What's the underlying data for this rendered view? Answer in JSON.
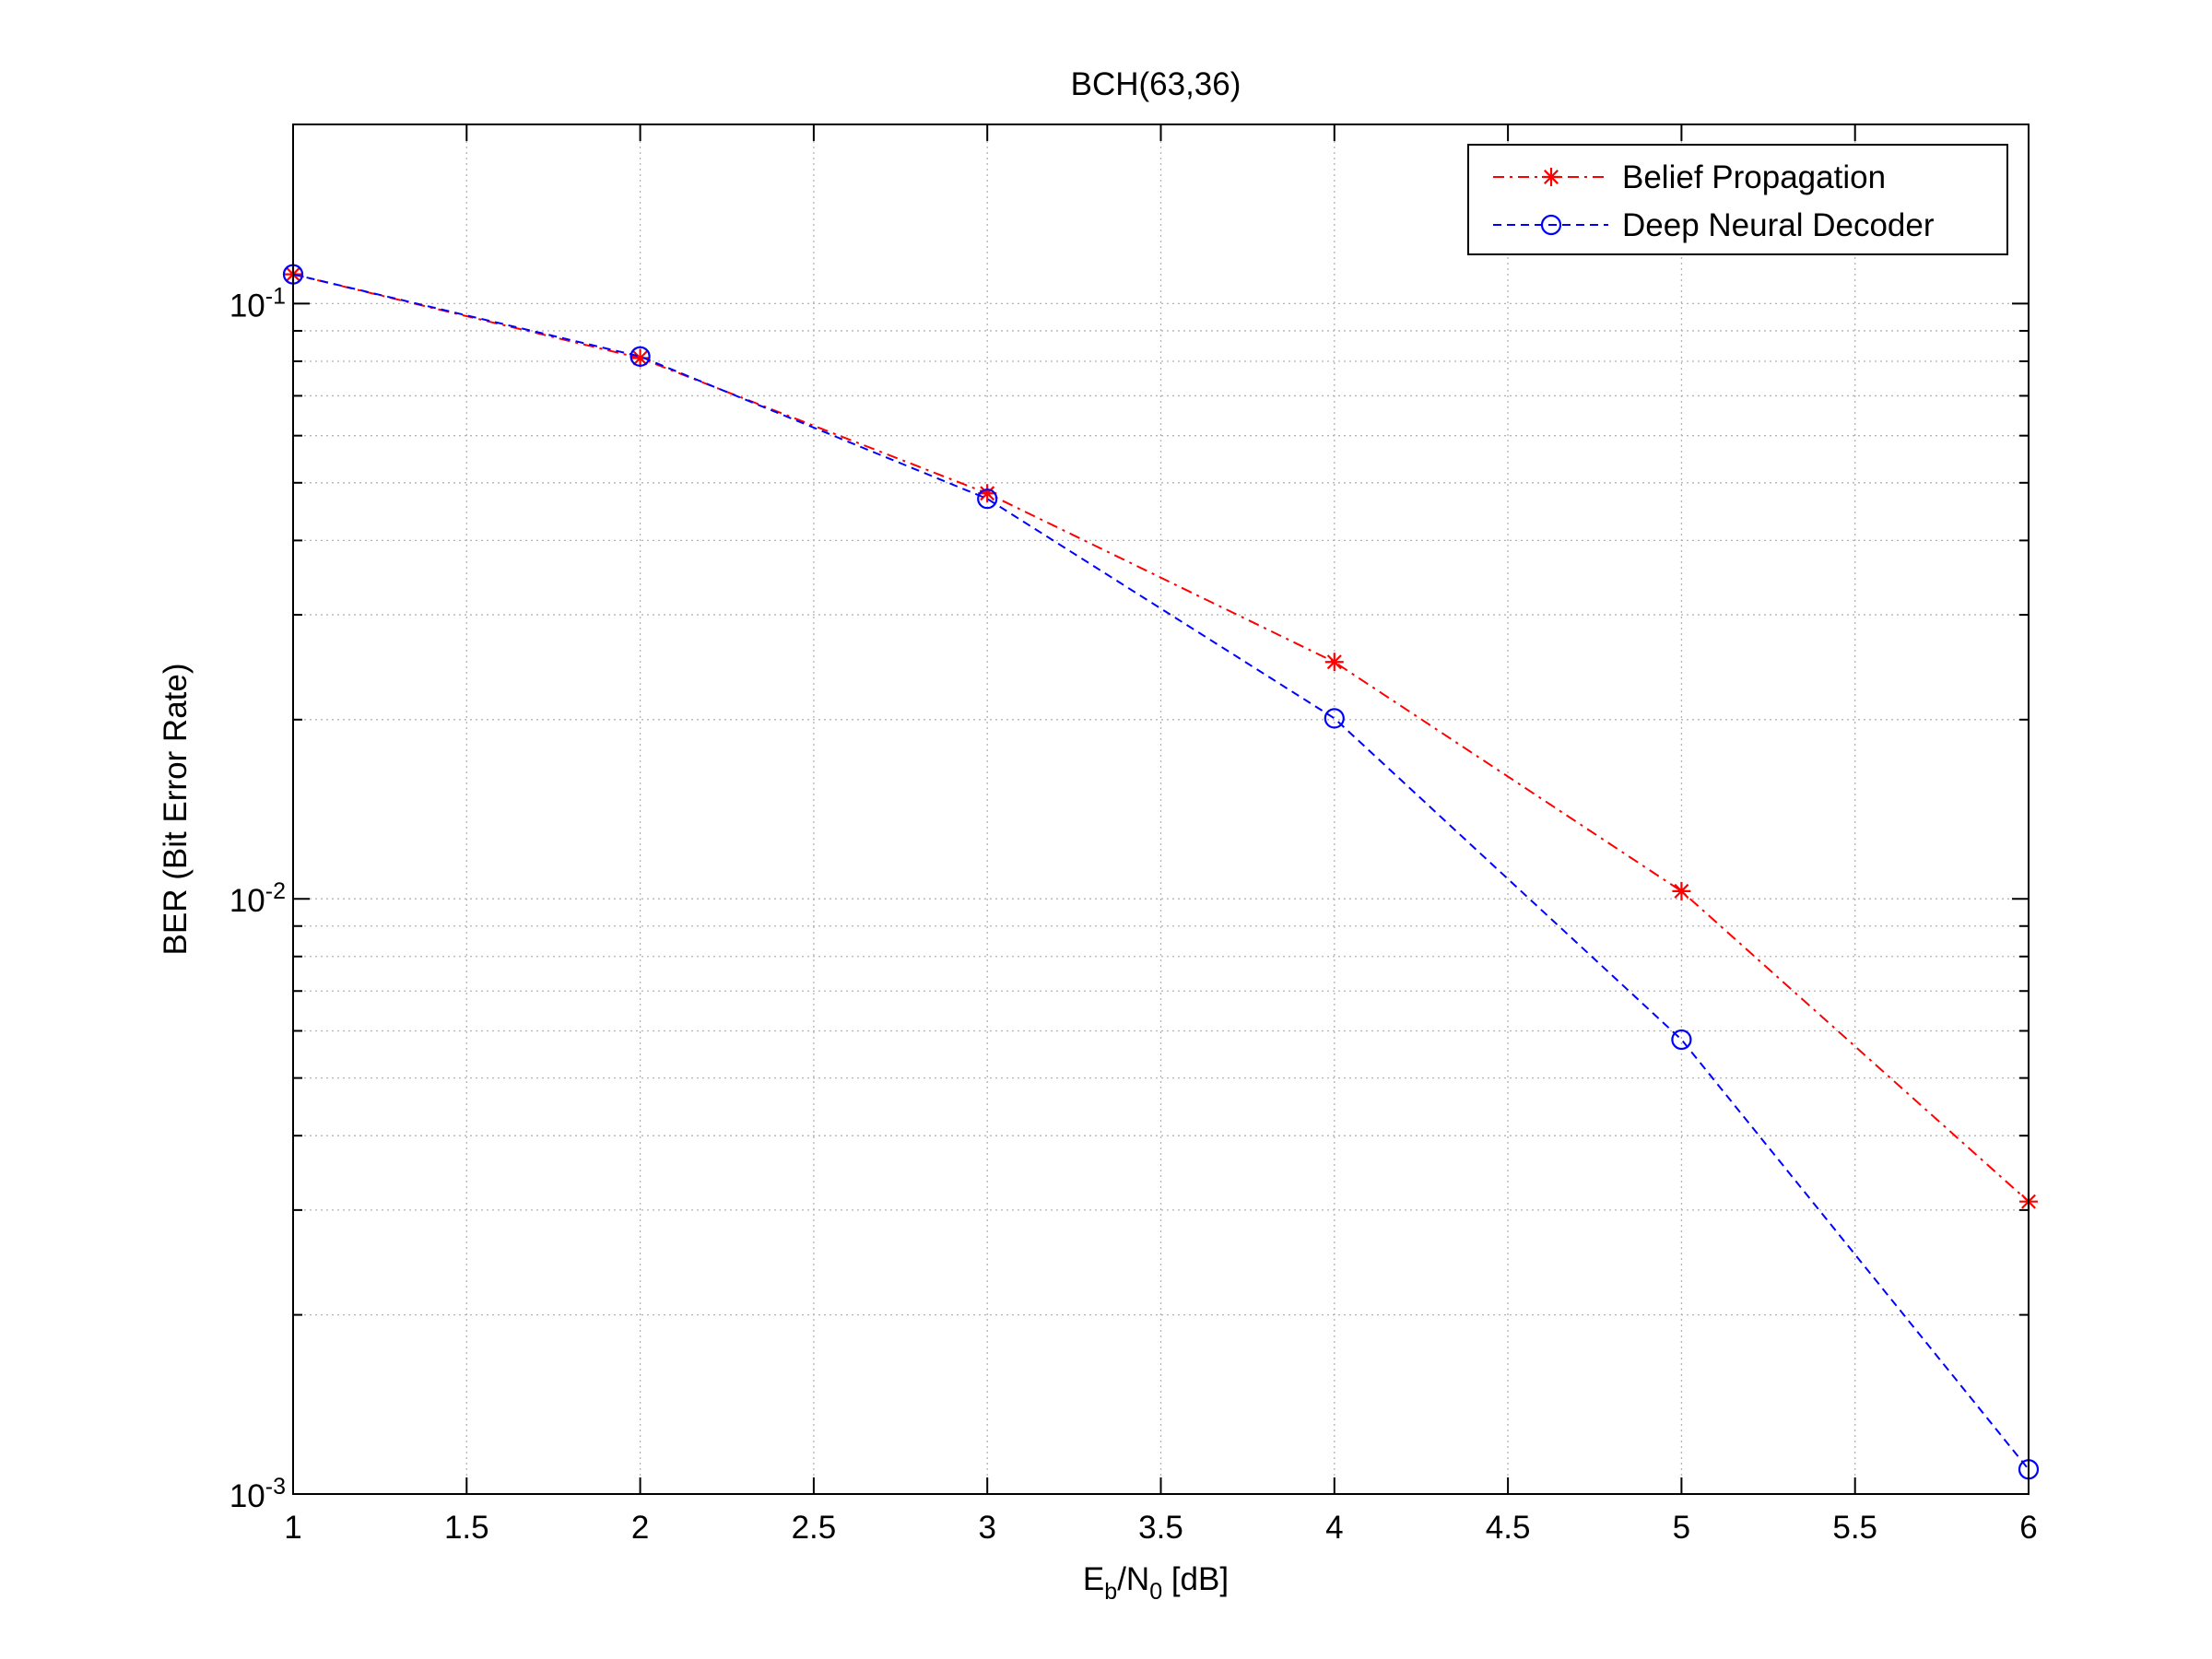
{
  "chart_data": {
    "type": "line",
    "title": "BCH(63,36)",
    "xlabel_parts": {
      "E": "E",
      "b": "b",
      "slash_n": "/N",
      "zero": "0",
      "unit": " [dB]"
    },
    "ylabel": "BER (Bit Error Rate)",
    "xlim": [
      1,
      6
    ],
    "ylim": [
      0.001,
      0.2
    ],
    "yscale": "log",
    "grid": true,
    "legend_position": "top-right",
    "x_ticks": [
      1,
      1.5,
      2,
      2.5,
      3,
      3.5,
      4,
      4.5,
      5,
      5.5,
      6
    ],
    "x_tick_labels": [
      "1",
      "1.5",
      "2",
      "2.5",
      "3",
      "3.5",
      "4",
      "4.5",
      "5",
      "5.5",
      "6"
    ],
    "y_ticks": [
      {
        "value": 0.1,
        "base": "10",
        "exp": "-1"
      },
      {
        "value": 0.01,
        "base": "10",
        "exp": "-2"
      },
      {
        "value": 0.001,
        "base": "10",
        "exp": "-3"
      }
    ],
    "series": [
      {
        "name": "Belief Propagation",
        "color": "#ff0000",
        "line_style": "dash-dot",
        "marker": "asterisk",
        "x": [
          1,
          2,
          3,
          4,
          5,
          6
        ],
        "y": [
          0.112,
          0.081,
          0.048,
          0.025,
          0.0103,
          0.0031
        ]
      },
      {
        "name": "Deep Neural Decoder",
        "color": "#0000ff",
        "line_style": "dashed",
        "marker": "circle",
        "x": [
          1,
          2,
          3,
          4,
          5,
          6
        ],
        "y": [
          0.112,
          0.0815,
          0.047,
          0.0201,
          0.0058,
          0.0011
        ]
      }
    ]
  }
}
